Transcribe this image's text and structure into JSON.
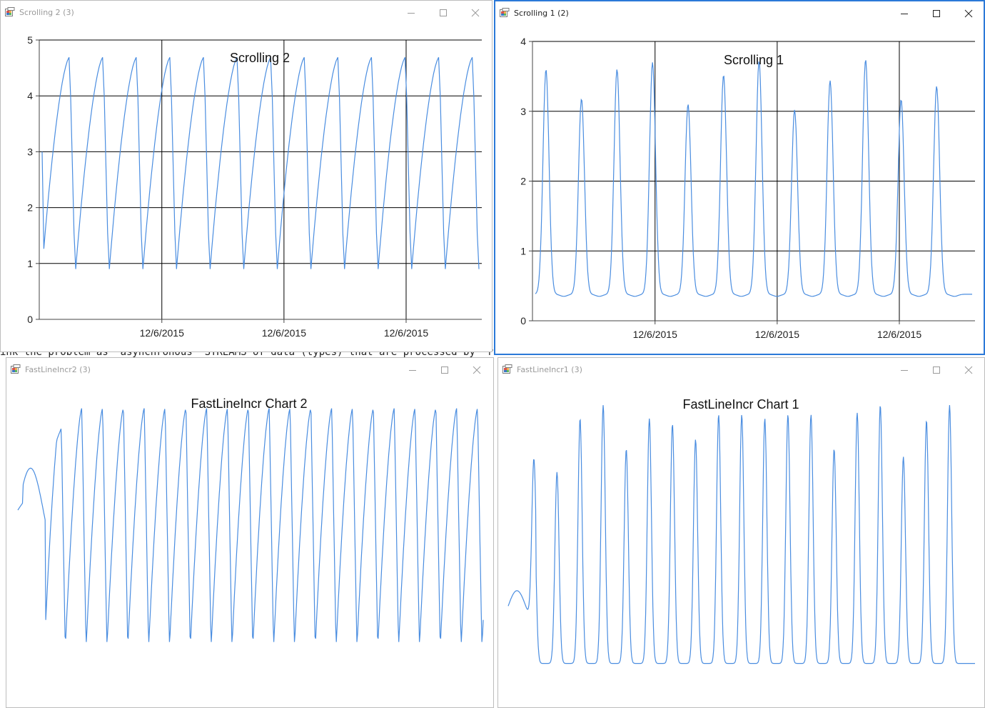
{
  "background_text": {
    "line1": "ink the problem as  asynchronous  STREAMS of data (types) that are processed by  react"
  },
  "accent_color": "#2b79d8",
  "series_color": "#4a8de0",
  "title_bar_buttons": [
    "minimize-icon",
    "maximize-icon",
    "close-icon"
  ],
  "windows": {
    "scrolling2": {
      "title": "Scrolling 2 (3)",
      "active": false,
      "chart_data": {
        "type": "line",
        "title": "Scrolling 2",
        "ylim": [
          0,
          5
        ],
        "yticks": [
          "0",
          "1",
          "2",
          "3",
          "4",
          "5"
        ],
        "xtick_labels": [
          "12/6/2015",
          "12/6/2015",
          "12/6/2015"
        ],
        "grid": true,
        "pattern": "sawtooth",
        "cycles": 13,
        "y_min": 0.9,
        "y_max": 4.7,
        "y_start": 3.0
      }
    },
    "scrolling1": {
      "title": "Scrolling 1 (2)",
      "active": true,
      "chart_data": {
        "type": "line",
        "title": "Scrolling 1",
        "ylim": [
          0,
          4
        ],
        "yticks": [
          "0",
          "1",
          "2",
          "3",
          "4"
        ],
        "xtick_labels": [
          "12/6/2015",
          "12/6/2015",
          "12/6/2015"
        ],
        "grid": true,
        "pattern": "spikes",
        "baseline": 0.38,
        "peaks": [
          3.6,
          3.18,
          3.6,
          3.7,
          3.1,
          3.52,
          3.72,
          3.02,
          3.44,
          3.74,
          3.17,
          3.36
        ]
      }
    },
    "fastline2": {
      "title": "FastLineIncr2 (3)",
      "active": false,
      "chart_data": {
        "type": "line",
        "title": "FastLineIncr Chart 2",
        "grid": false,
        "axes": false,
        "pattern": "sawtooth",
        "cycles": 21
      }
    },
    "fastline1": {
      "title": "FastLineIncr1 (3)",
      "active": false,
      "chart_data": {
        "type": "line",
        "title": "FastLineIncr Chart 1",
        "grid": false,
        "axes": false,
        "pattern": "spikes",
        "peaks": [
          0.85,
          1.0,
          1.28,
          1.35,
          1.12,
          1.28,
          1.25,
          1.17,
          1.3,
          1.3,
          1.28,
          1.3,
          1.3,
          1.12,
          1.31,
          1.35,
          1.08,
          1.27,
          1.35
        ]
      }
    }
  }
}
